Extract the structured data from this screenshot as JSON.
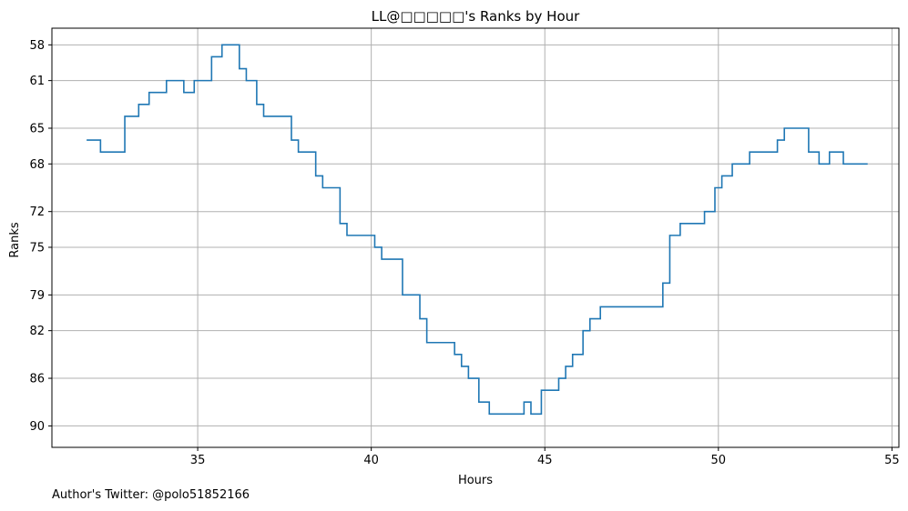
{
  "chart_data": {
    "type": "line",
    "step": true,
    "title": "LL@□□□□□'s Ranks by Hour",
    "xlabel": "Hours",
    "ylabel": "Ranks",
    "xlim": [
      30.8,
      55.2
    ],
    "ylim": [
      91.8,
      56.6
    ],
    "y_inverted": true,
    "grid": true,
    "line_color": "#1f77b4",
    "xticks": [
      35,
      40,
      45,
      50,
      55
    ],
    "yticks": [
      58,
      61,
      65,
      68,
      72,
      75,
      79,
      82,
      86,
      90
    ],
    "series": [
      {
        "x": [
          31.8,
          32.2,
          32.6,
          32.9,
          33.3,
          33.6,
          34.1,
          34.6,
          34.9,
          35.4,
          35.7,
          36.2,
          36.4,
          36.7,
          36.9,
          37.7,
          37.9,
          38.4,
          38.6,
          39.1,
          39.3,
          40.1,
          40.3,
          40.9,
          41.4,
          41.6,
          42.4,
          42.6,
          42.8,
          43.1,
          43.4,
          44.4,
          44.6,
          44.9,
          45.4,
          45.6,
          45.8,
          46.1,
          46.3,
          46.6,
          48.4,
          48.6,
          48.9,
          49.6,
          49.9,
          50.1,
          50.4,
          50.9,
          51.7,
          51.9,
          52.6,
          52.9,
          53.2,
          53.6,
          54.3
        ],
        "y": [
          66,
          67,
          67,
          64,
          63,
          62,
          61,
          62,
          61,
          59,
          58,
          60,
          61,
          63,
          64,
          66,
          67,
          69,
          70,
          73,
          74,
          75,
          76,
          79,
          81,
          83,
          84,
          85,
          86,
          88,
          89,
          88,
          89,
          87,
          86,
          85,
          84,
          82,
          81,
          80,
          78,
          74,
          73,
          72,
          70,
          69,
          68,
          67,
          66,
          65,
          67,
          68,
          67,
          68,
          68
        ]
      }
    ]
  },
  "footer": "Author's Twitter: @polo51852166"
}
